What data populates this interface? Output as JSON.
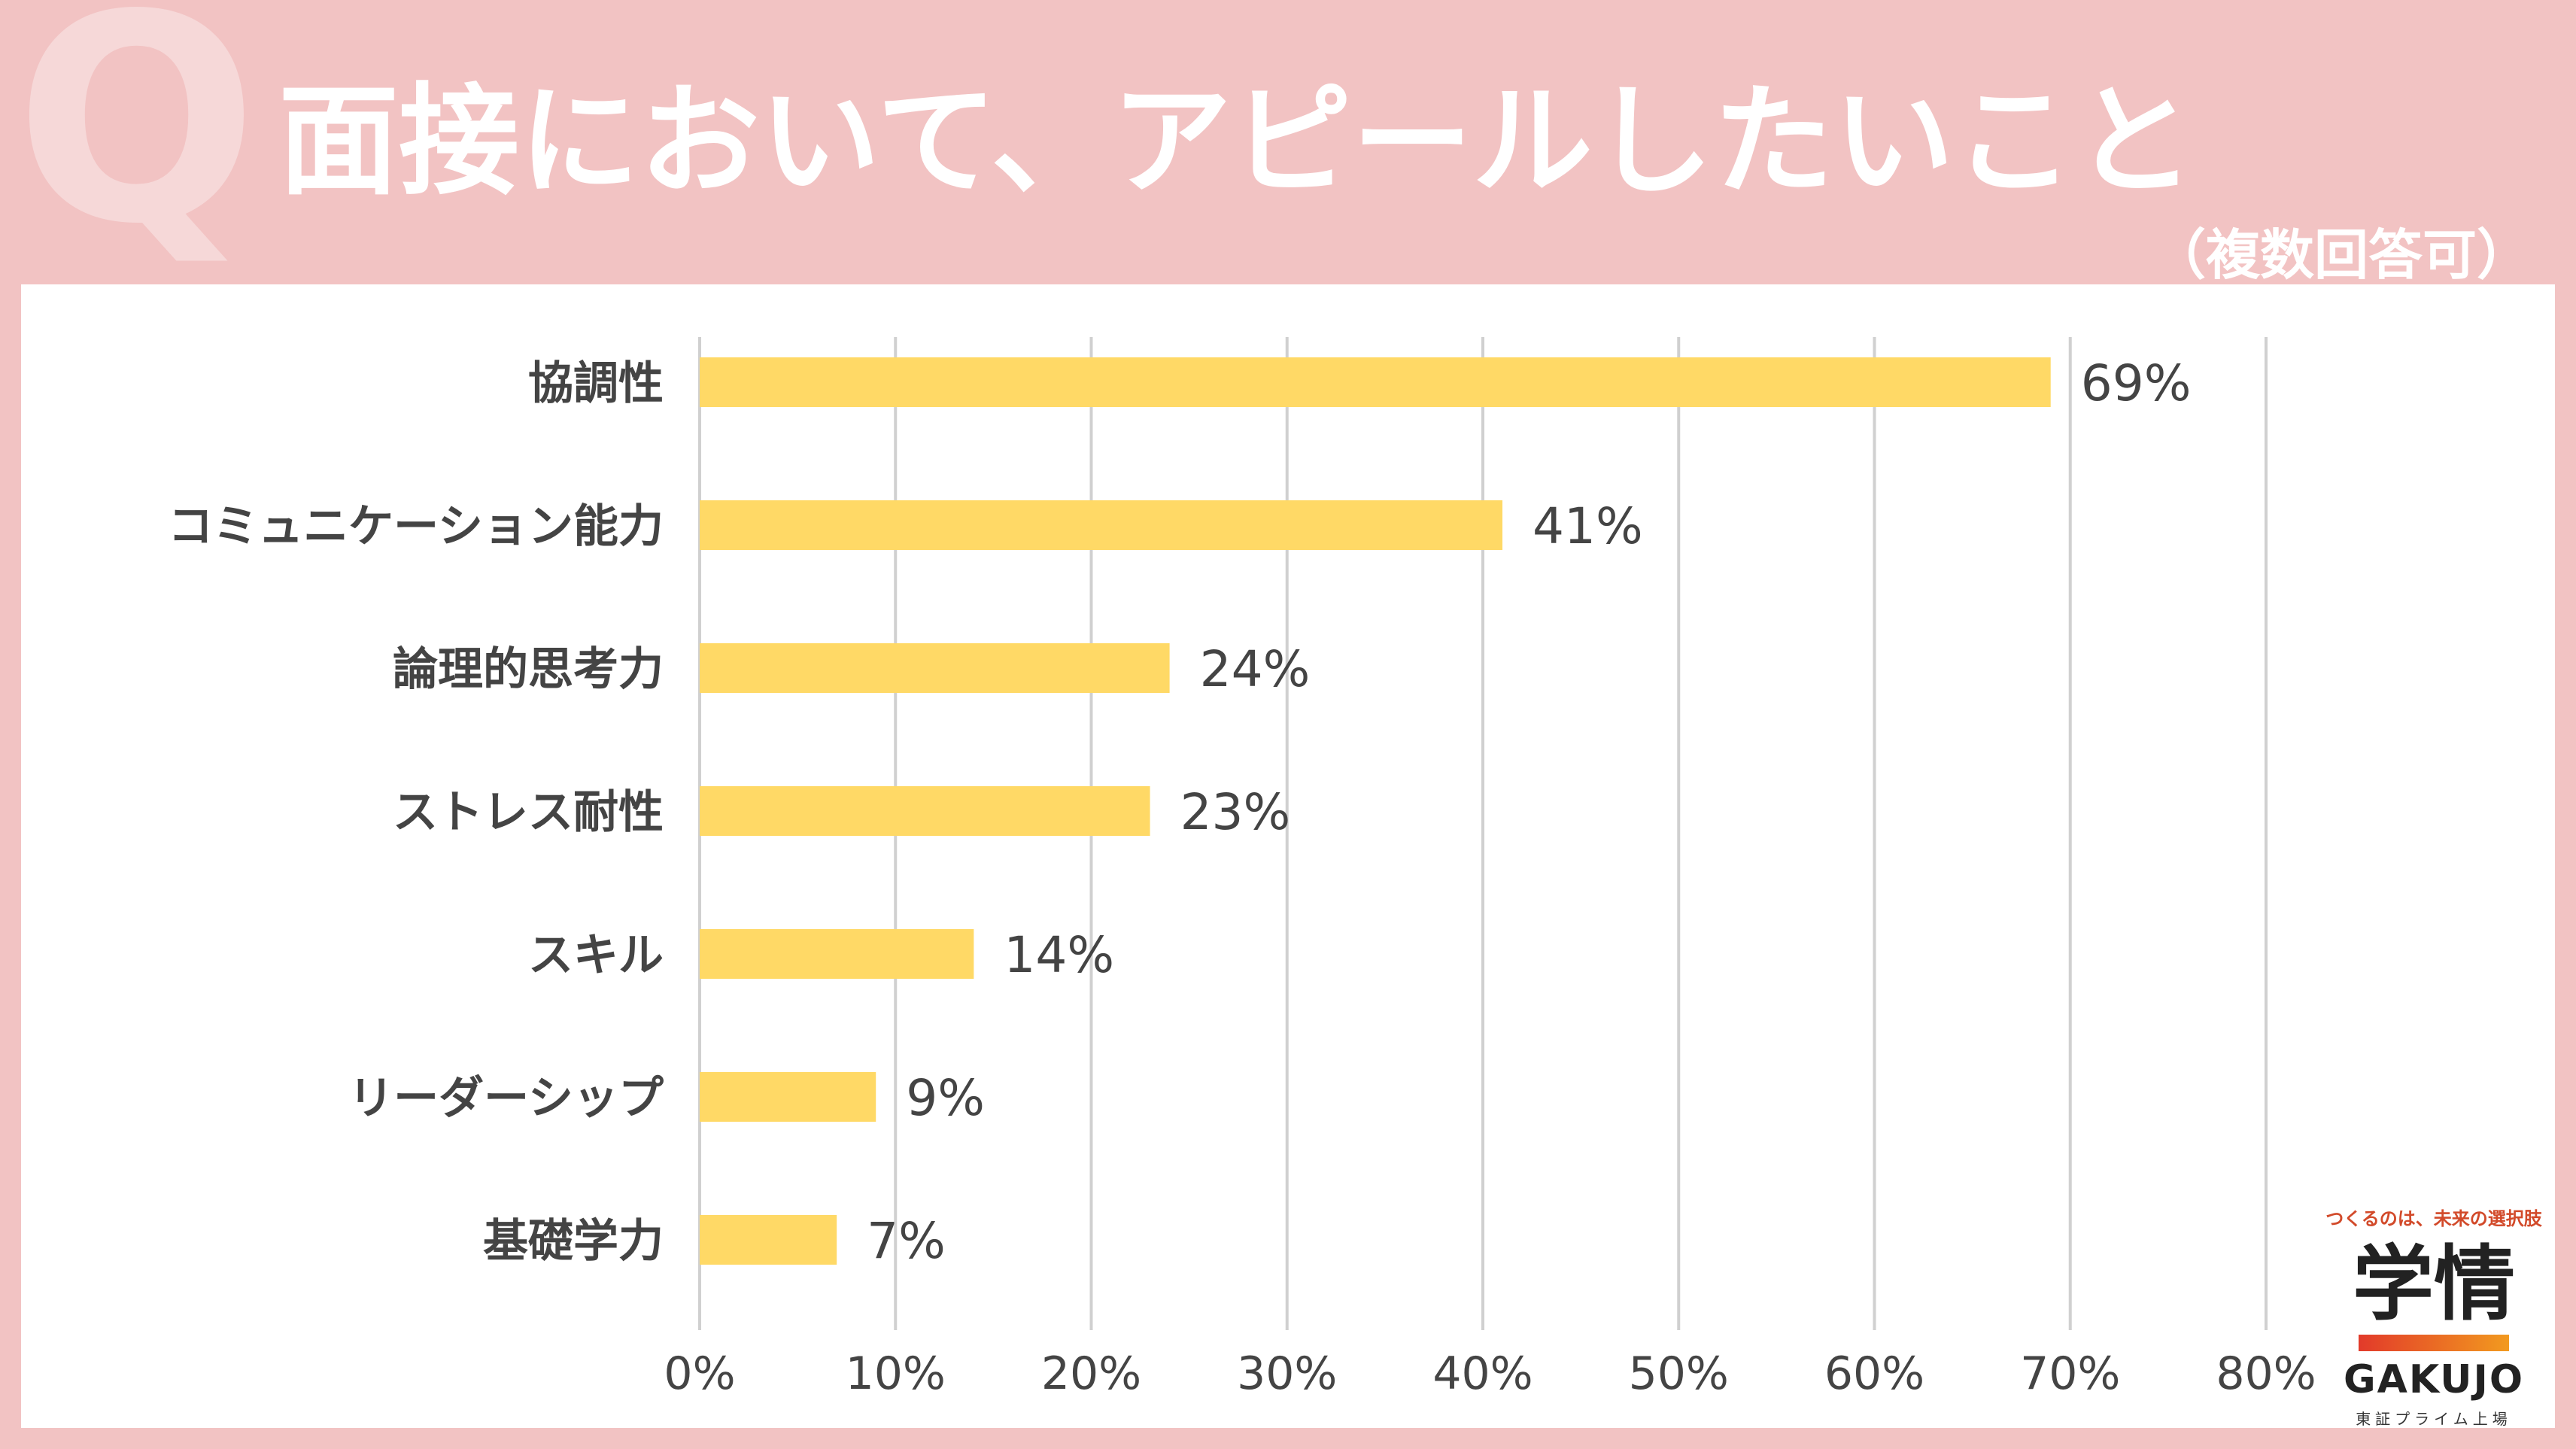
{
  "header": {
    "q_mark": "Q",
    "title": "面接において、アピールしたいこと",
    "subtitle": "（複数回答可）"
  },
  "colors": {
    "background": "#f2c3c3",
    "bar": "#ffd966",
    "grid": "#d0d0d0",
    "text": "#444444"
  },
  "chart_data": {
    "type": "bar",
    "orientation": "horizontal",
    "categories": [
      "協調性",
      "コミュニケーション能力",
      "論理的思考力",
      "ストレス耐性",
      "スキル",
      "リーダーシップ",
      "基礎学力"
    ],
    "values": [
      69,
      41,
      24,
      23,
      14,
      9,
      7
    ],
    "value_labels": [
      "69%",
      "41%",
      "24%",
      "23%",
      "14%",
      "9%",
      "7%"
    ],
    "xlim": [
      0,
      80
    ],
    "xticks": [
      0,
      10,
      20,
      30,
      40,
      50,
      60,
      70,
      80
    ],
    "xtick_labels": [
      "0%",
      "10%",
      "20%",
      "30%",
      "40%",
      "50%",
      "60%",
      "70%",
      "80%"
    ],
    "grid": true
  },
  "logo": {
    "tagline": "つくるのは、未来の選択肢",
    "mark": "学情",
    "wordmark": "GAKUJO",
    "subtext": "東証プライム上場"
  }
}
